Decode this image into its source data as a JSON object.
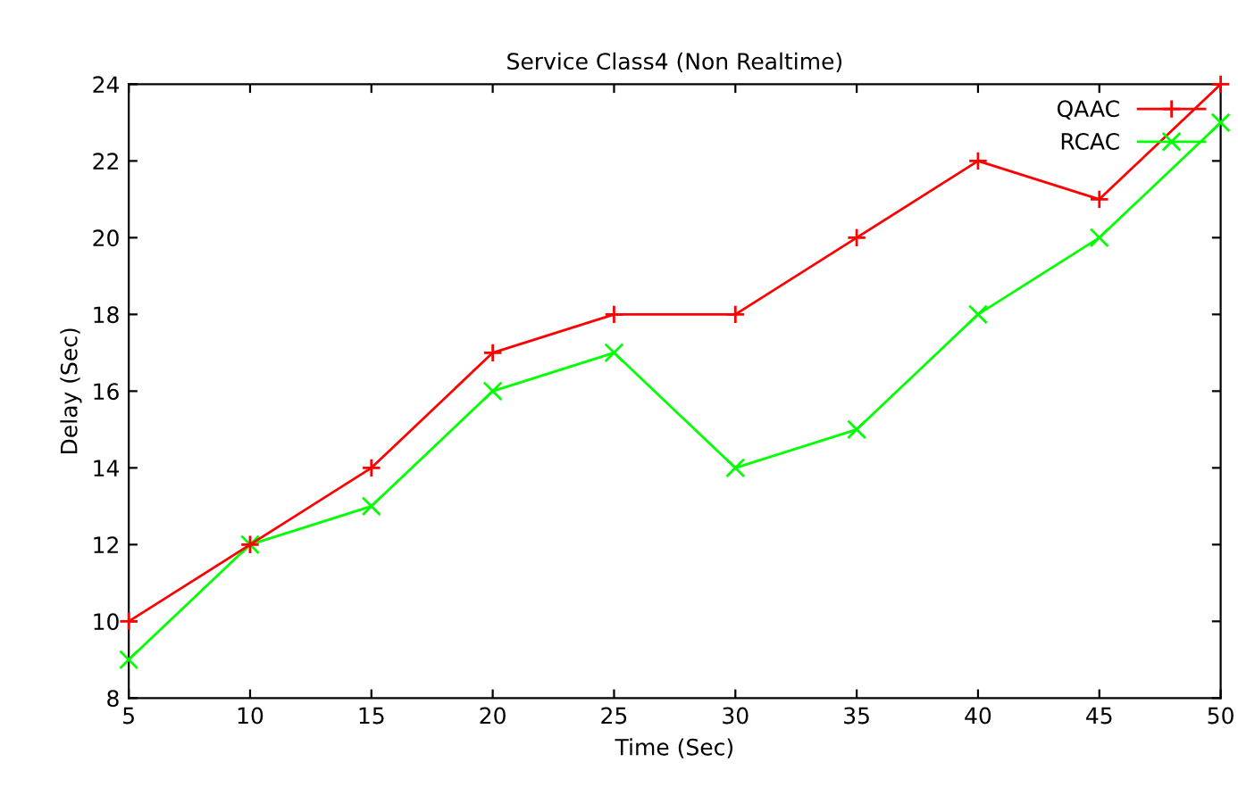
{
  "chart_data": {
    "type": "line",
    "title": "Service Class4 (Non Realtime)",
    "xlabel": "Time (Sec)",
    "ylabel": "Delay (Sec)",
    "x": [
      5,
      10,
      15,
      20,
      25,
      30,
      35,
      40,
      45,
      50
    ],
    "series": [
      {
        "name": "QAAC",
        "color": "#ff0000",
        "values": [
          10,
          12,
          14,
          17,
          18,
          18,
          20,
          22,
          21,
          24
        ]
      },
      {
        "name": "RCAC",
        "color": "#00ff00",
        "values": [
          9,
          12,
          13,
          16,
          17,
          14,
          15,
          18,
          20,
          23
        ]
      }
    ],
    "xlim": [
      5,
      50
    ],
    "xticks": [
      5,
      10,
      15,
      20,
      25,
      30,
      35,
      40,
      45,
      50
    ],
    "ylim": [
      8,
      24
    ],
    "yticks": [
      8,
      10,
      12,
      14,
      16,
      18,
      20,
      22,
      24
    ],
    "grid": false,
    "legend": "top right",
    "marker": "cross",
    "line_style": "solid"
  }
}
